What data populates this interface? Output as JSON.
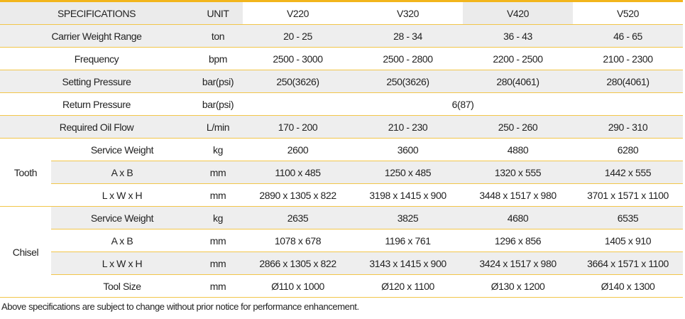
{
  "table": {
    "header": [
      "SPECIFICATIONS",
      "UNIT",
      "V220",
      "V320",
      "V420",
      "V520"
    ],
    "rows": [
      {
        "spec": "Carrier Weight Range",
        "unit": "ton",
        "values": [
          "20 - 25",
          "28 - 34",
          "36 - 43",
          "46 - 65"
        ]
      },
      {
        "spec": "Frequency",
        "unit": "bpm",
        "values": [
          "2500 - 3000",
          "2500 - 2800",
          "2200 - 2500",
          "2100 - 2300"
        ]
      },
      {
        "spec": "Setting Pressure",
        "unit": "bar(psi)",
        "values": [
          "250(3626)",
          "250(3626)",
          "280(4061)",
          "280(4061)"
        ]
      },
      {
        "spec": "Return Pressure",
        "unit": "bar(psi)",
        "values": [
          "6(87)"
        ]
      },
      {
        "spec": "Required Oil Flow",
        "unit": "L/min",
        "values": [
          "170 - 200",
          "210 - 230",
          "250 - 260",
          "290 - 310"
        ]
      }
    ],
    "groups": [
      {
        "name": "Tooth",
        "rows": [
          {
            "spec": "Service Weight",
            "unit": "kg",
            "values": [
              "2600",
              "3600",
              "4880",
              "6280"
            ]
          },
          {
            "spec": "A x B",
            "unit": "mm",
            "values": [
              "1100 x 485",
              "1250 x 485",
              "1320 x 555",
              "1442 x 555"
            ]
          },
          {
            "spec": "L x W x H",
            "unit": "mm",
            "values": [
              "2890 x 1305 x 822",
              "3198 x 1415 x 900",
              "3448 x 1517 x 980",
              "3701 x 1571 x 1100"
            ]
          }
        ]
      },
      {
        "name": "Chisel",
        "rows": [
          {
            "spec": "Service Weight",
            "unit": "kg",
            "values": [
              "2635",
              "3825",
              "4680",
              "6535"
            ]
          },
          {
            "spec": "A x B",
            "unit": "mm",
            "values": [
              "1078 x 678",
              "1196 x 761",
              "1296 x 856",
              "1405 x 910"
            ]
          },
          {
            "spec": "L x W x H",
            "unit": "mm",
            "values": [
              "2866 x 1305 x 822",
              "3143 x 1415 x 900",
              "3424 x 1517 x 980",
              "3664 x 1571 x 1100"
            ]
          },
          {
            "spec": "Tool Size",
            "unit": "mm",
            "values": [
              "Ø110 x 1000",
              "Ø120 x 1100",
              "Ø130 x 1200",
              "Ø140 x 1300"
            ]
          }
        ]
      }
    ]
  },
  "footnote": "Above specifications are subject to change without prior notice for performance enhancement."
}
